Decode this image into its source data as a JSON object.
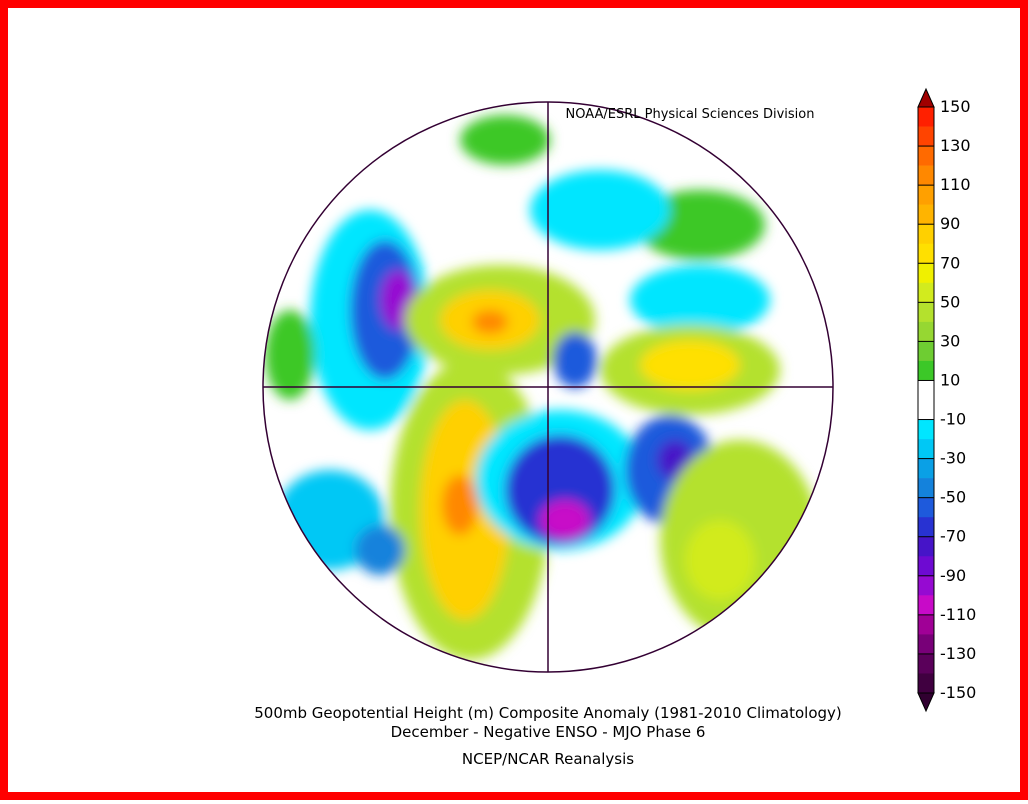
{
  "credit": "NOAA/ESRL Physical Sciences Division",
  "title_lines": [
    "500mb Geopotential Height (m) Composite Anomaly (1981-2010 Climatology)",
    "December - Negative ENSO - MJO Phase 6"
  ],
  "source": "NCEP/NCAR Reanalysis",
  "colorbar": {
    "ticks": [
      150,
      130,
      110,
      90,
      70,
      50,
      30,
      10,
      -10,
      -30,
      -50,
      -70,
      -90,
      -110,
      -130,
      -150
    ],
    "band_colors": [
      "#ff2000",
      "#ff4400",
      "#ff6a00",
      "#ff8800",
      "#ffa000",
      "#ffb400",
      "#ffd000",
      "#ffe000",
      "#f0f000",
      "#d2eb1e",
      "#b4e12d",
      "#96d732",
      "#6ecd32",
      "#3cc828",
      "#ffffff",
      "#ffffff",
      "#00e6ff",
      "#00c8f5",
      "#0aa0e6",
      "#1482dc",
      "#1e5adc",
      "#2832d2",
      "#4614c8",
      "#6e0ad2",
      "#960ad2",
      "#c80ac8",
      "#a00096",
      "#780078",
      "#5a005a",
      "#400040"
    ],
    "over_color": "#a00000",
    "under_color": "#300030"
  }
}
